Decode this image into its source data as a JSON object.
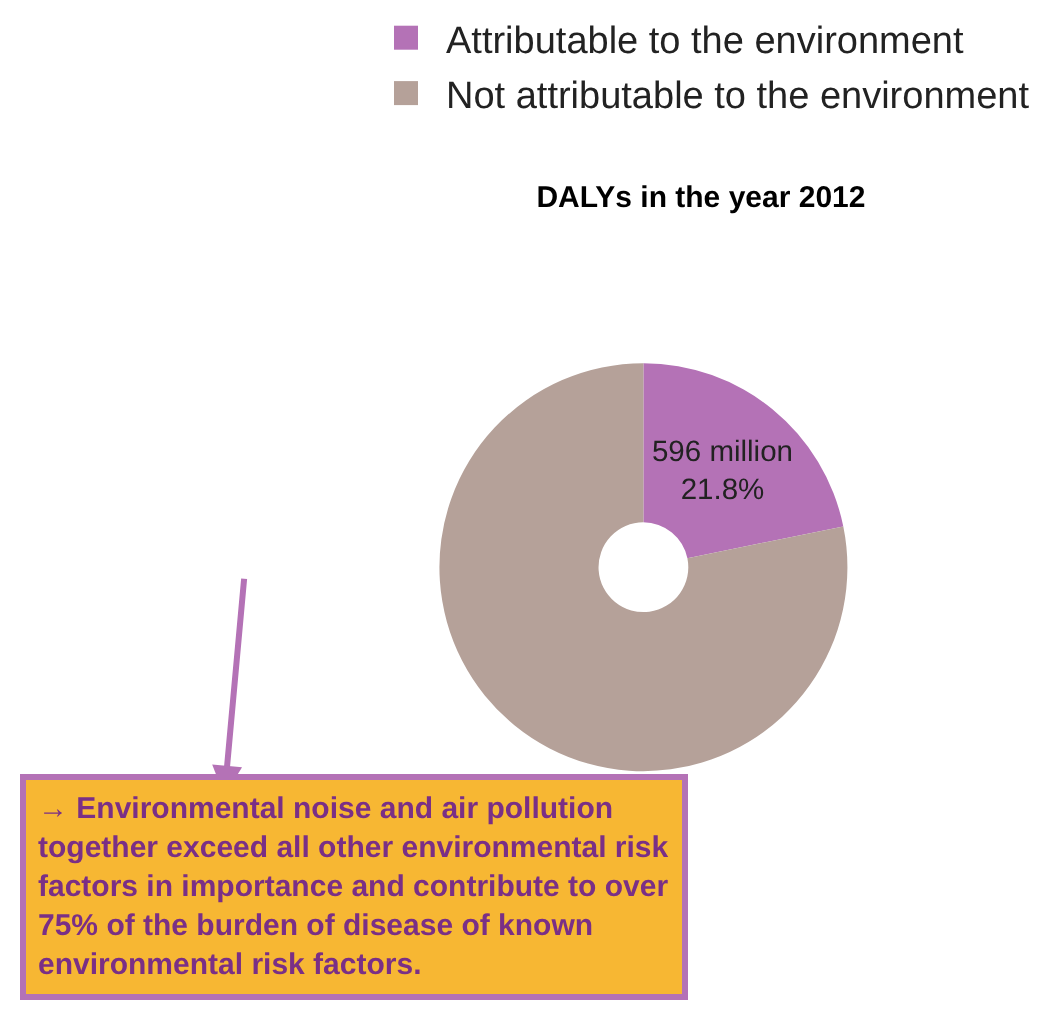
{
  "chart_data": {
    "type": "donut",
    "title": "DALYs in the year 2012",
    "categories": [
      "Attributable to the environment",
      "Not attributable to the environment"
    ],
    "values": [
      21.8,
      78.2
    ],
    "colors": [
      "#b472b6",
      "#b5a199"
    ],
    "value_labels": [
      "596 million\n21.8%",
      null
    ],
    "legend": "top right",
    "annotations": [
      "→ Environmental noise and air pollution together exceed all other environmental risk factors in importance and contribute to over 75% of the burden of disease of known environmental risk factors."
    ]
  }
}
